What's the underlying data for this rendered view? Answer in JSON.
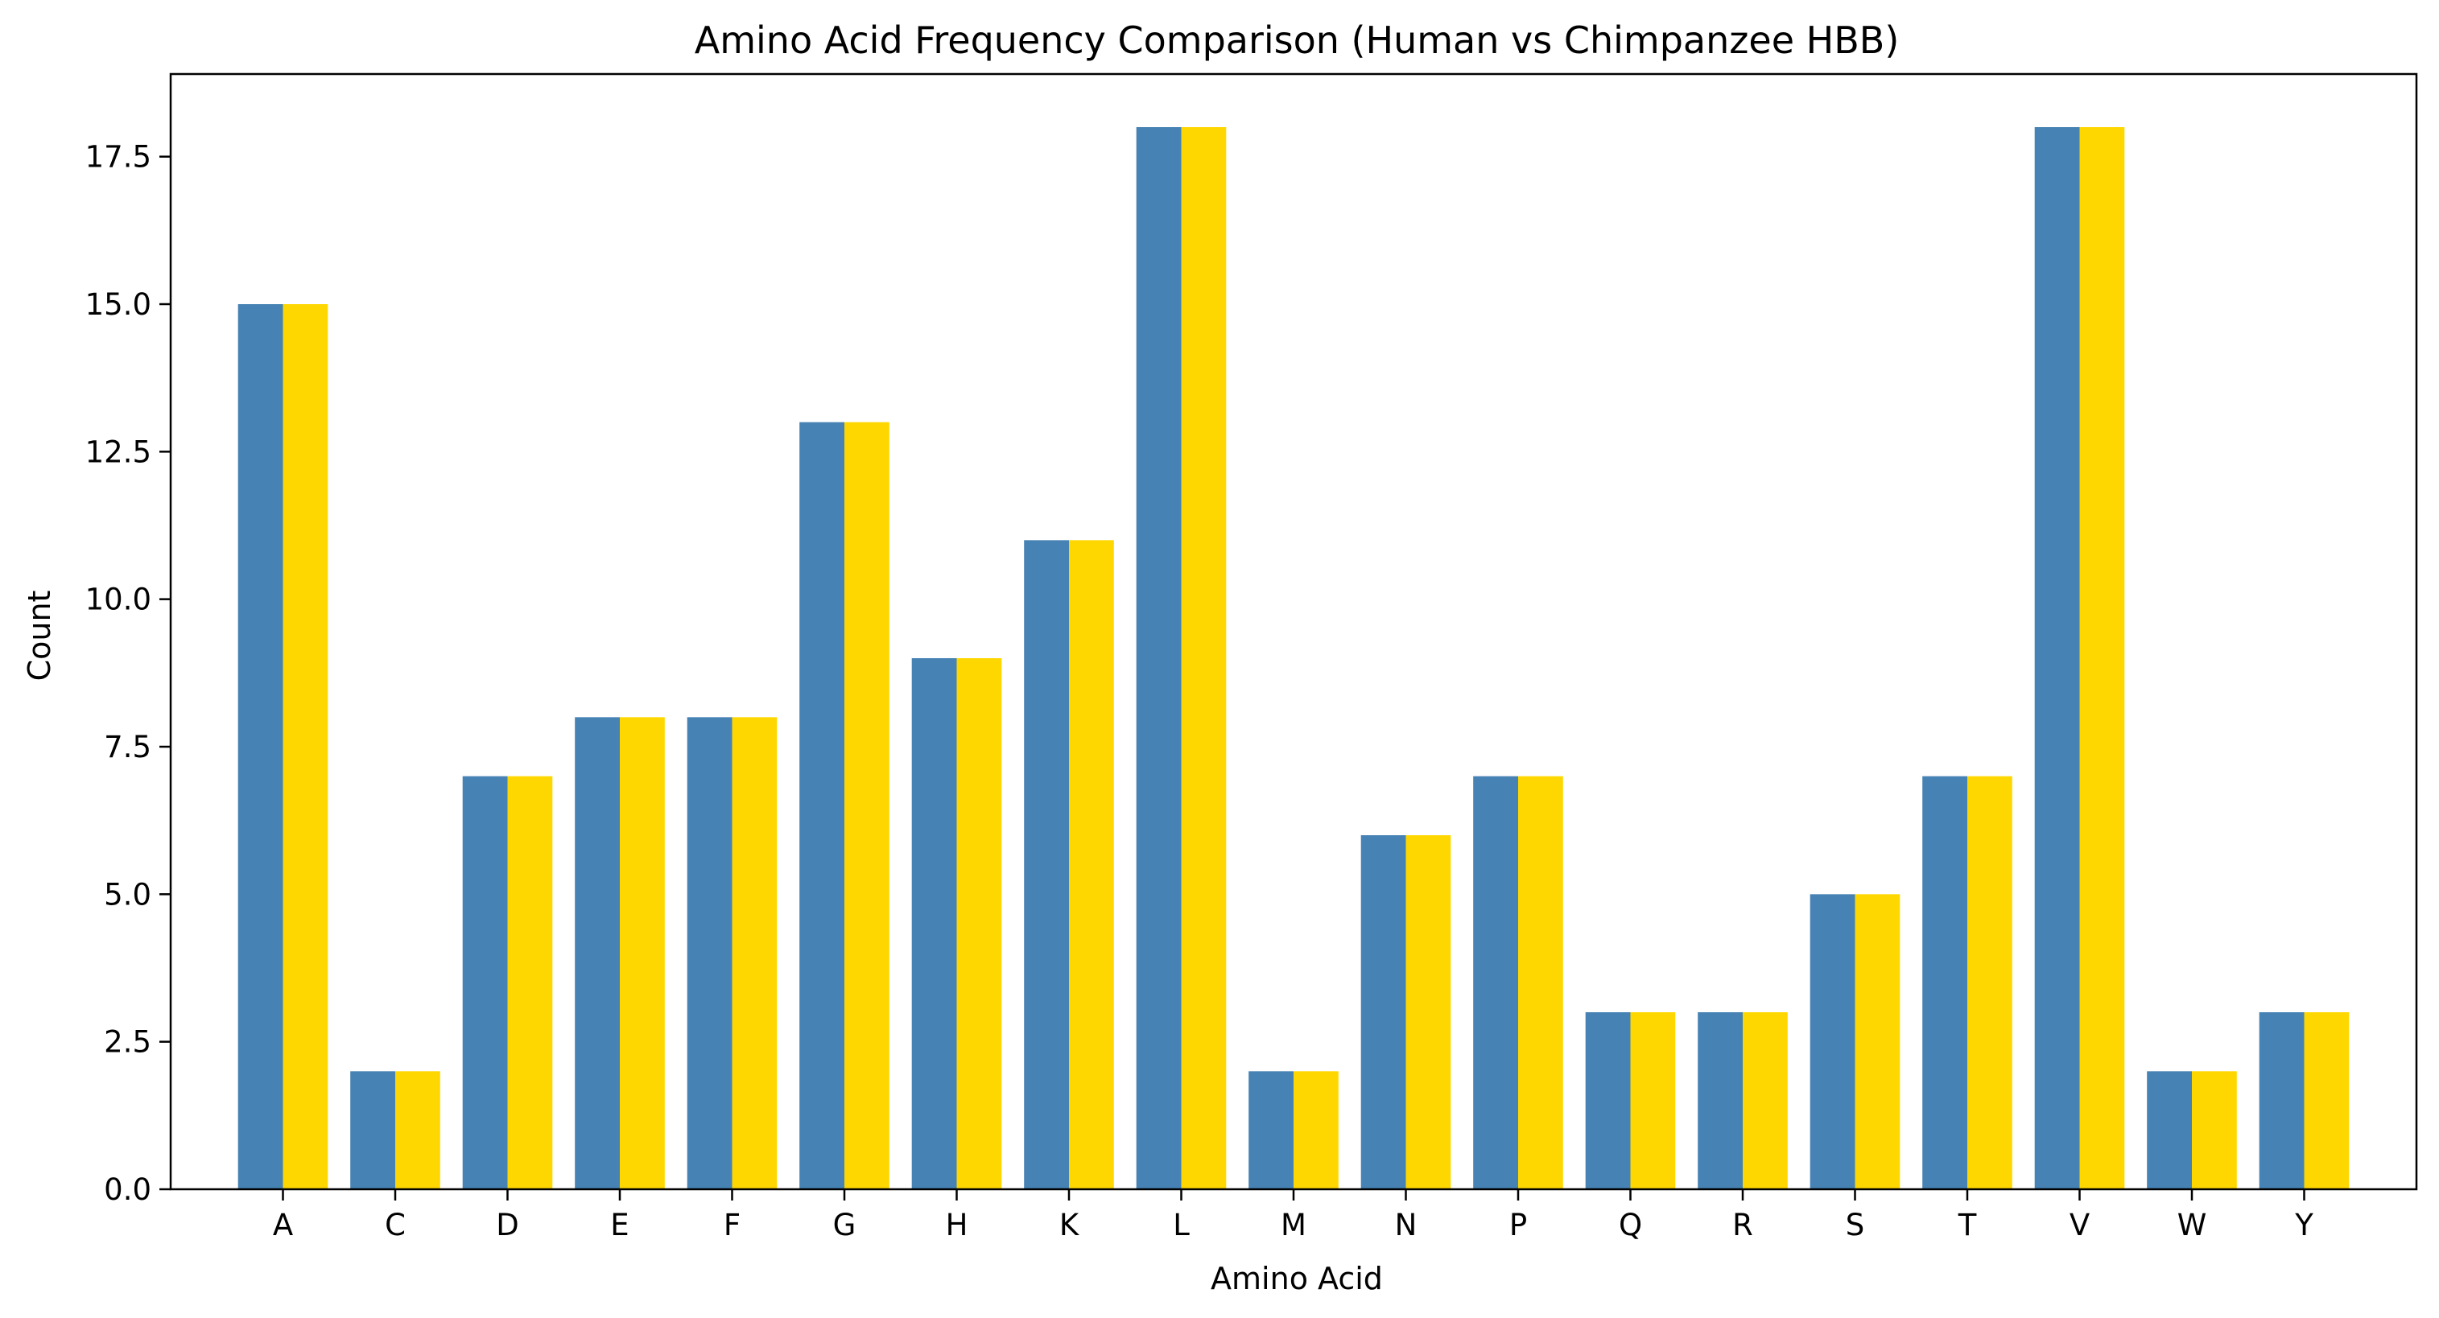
{
  "chart_data": {
    "type": "bar",
    "title": "Amino Acid Frequency Comparison (Human vs Chimpanzee HBB)",
    "xlabel": "Amino Acid",
    "ylabel": "Count",
    "categories": [
      "A",
      "C",
      "D",
      "E",
      "F",
      "G",
      "H",
      "K",
      "L",
      "M",
      "N",
      "P",
      "Q",
      "R",
      "S",
      "T",
      "V",
      "W",
      "Y"
    ],
    "series": [
      {
        "values": [
          15,
          2,
          7,
          8,
          8,
          13,
          9,
          11,
          18,
          2,
          6,
          7,
          3,
          3,
          5,
          7,
          18,
          2,
          3
        ],
        "color": "#4682b4"
      },
      {
        "values": [
          15,
          2,
          7,
          8,
          8,
          13,
          9,
          11,
          18,
          2,
          6,
          7,
          3,
          3,
          5,
          7,
          18,
          2,
          3
        ],
        "color": "#ffd700"
      }
    ],
    "ylim": [
      0,
      18.9
    ],
    "yticks": [
      "0.0",
      "2.5",
      "5.0",
      "7.5",
      "10.0",
      "12.5",
      "15.0",
      "17.5"
    ],
    "grid": false,
    "legend": false
  }
}
